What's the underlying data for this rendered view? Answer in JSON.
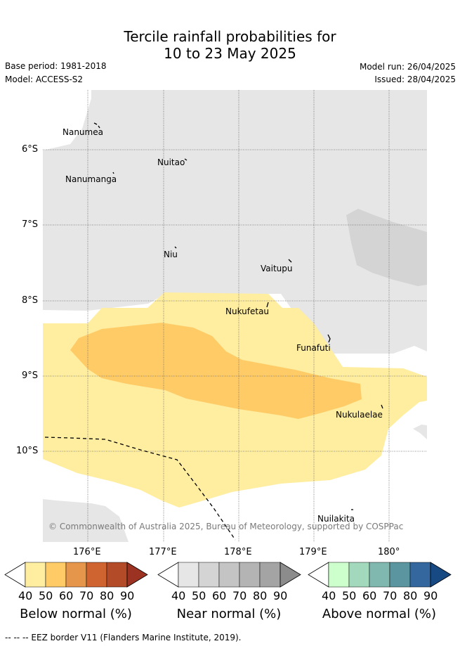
{
  "header": {
    "title_line1": "Tercile rainfall probabilities for",
    "title_line2": "10 to 23 May 2025",
    "base_period": "Base period: 1981-2018",
    "model": "Model: ACCESS-S2",
    "model_run": "Model run: 26/04/2025",
    "issued": "Issued: 28/04/2025"
  },
  "map": {
    "lat_ticks": [
      "6°S",
      "7°S",
      "8°S",
      "9°S",
      "10°S"
    ],
    "lon_ticks": [
      "176°E",
      "177°E",
      "178°E",
      "179°E",
      "180°"
    ],
    "places": [
      {
        "name": "Nanumea"
      },
      {
        "name": "Nuitao"
      },
      {
        "name": "Nanumanga"
      },
      {
        "name": "Niu"
      },
      {
        "name": "Vaitupu"
      },
      {
        "name": "Nukufetau"
      },
      {
        "name": "Funafuti"
      },
      {
        "name": "Nukulaelae"
      },
      {
        "name": "Nuilakita"
      }
    ],
    "copyright": "© Commonwealth of Australia 2025, Bureau of Meteorology, supported by COSPPac",
    "colors": {
      "near_normal_40": "#e6e6e6",
      "near_normal_50": "#d4d4d4",
      "below_40": "#ffeda0",
      "below_50": "#ffcb66"
    }
  },
  "legends": [
    {
      "label": "Below normal (%)",
      "ticks": [
        "40",
        "50",
        "60",
        "70",
        "80",
        "90"
      ],
      "colors": [
        "#ffeda0",
        "#ffcb66",
        "#e5964a",
        "#d06430",
        "#b34a28",
        "#9c3322"
      ]
    },
    {
      "label": "Near normal (%)",
      "ticks": [
        "40",
        "50",
        "60",
        "70",
        "80",
        "90"
      ],
      "colors": [
        "#e6e6e6",
        "#d4d4d4",
        "#c4c4c4",
        "#b4b4b4",
        "#a4a4a4",
        "#8c8c8c"
      ]
    },
    {
      "label": "Above normal (%)",
      "ticks": [
        "40",
        "50",
        "60",
        "70",
        "80",
        "90"
      ],
      "colors": [
        "#ccffcc",
        "#a2d9bd",
        "#80b8b0",
        "#5a95a0",
        "#33679e",
        "#174a83"
      ]
    }
  ],
  "footer": "--  --  -- EEZ border V11 (Flanders Marine Institute, 2019)."
}
